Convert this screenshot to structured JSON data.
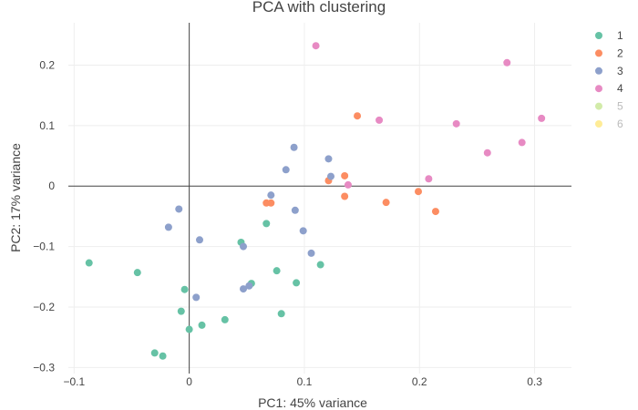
{
  "chart_data": {
    "type": "scatter",
    "title": "PCA with clustering",
    "xlabel": "PC1: 45% variance",
    "ylabel": "PC2: 17% variance",
    "xlim": [
      -0.105,
      0.332
    ],
    "ylim": [
      -0.31,
      0.27
    ],
    "xticks": [
      -0.1,
      0,
      0.1,
      0.2,
      0.3
    ],
    "xtick_labels": [
      "−0.1",
      "0",
      "0.1",
      "0.2",
      "0.3"
    ],
    "yticks": [
      -0.3,
      -0.2,
      -0.1,
      0,
      0.1,
      0.2
    ],
    "ytick_labels": [
      "−0.3",
      "−0.2",
      "−0.1",
      "0",
      "0.1",
      "0.2"
    ],
    "grid": true,
    "legend_position": "top-right",
    "series": [
      {
        "name": "1",
        "color": "#66c2a5",
        "points": [
          [
            -0.087,
            -0.127
          ],
          [
            -0.045,
            -0.143
          ],
          [
            -0.004,
            -0.171
          ],
          [
            -0.007,
            -0.207
          ],
          [
            0.0,
            -0.237
          ],
          [
            0.011,
            -0.23
          ],
          [
            0.031,
            -0.221
          ],
          [
            -0.03,
            -0.276
          ],
          [
            -0.023,
            -0.281
          ],
          [
            0.045,
            -0.093
          ],
          [
            0.054,
            -0.161
          ],
          [
            0.067,
            -0.062
          ],
          [
            0.076,
            -0.14
          ],
          [
            0.08,
            -0.211
          ],
          [
            0.093,
            -0.16
          ],
          [
            0.114,
            -0.13
          ]
        ]
      },
      {
        "name": "2",
        "color": "#fc8d62",
        "points": [
          [
            0.067,
            -0.028
          ],
          [
            0.071,
            -0.028
          ],
          [
            0.121,
            0.009
          ],
          [
            0.135,
            0.017
          ],
          [
            0.135,
            -0.017
          ],
          [
            0.146,
            0.116
          ],
          [
            0.171,
            -0.027
          ],
          [
            0.199,
            -0.009
          ],
          [
            0.214,
            -0.042
          ]
        ]
      },
      {
        "name": "3",
        "color": "#8da0cb",
        "points": [
          [
            -0.009,
            -0.038
          ],
          [
            -0.018,
            -0.068
          ],
          [
            0.009,
            -0.089
          ],
          [
            0.006,
            -0.184
          ],
          [
            0.047,
            -0.1
          ],
          [
            0.047,
            -0.17
          ],
          [
            0.052,
            -0.165
          ],
          [
            0.071,
            -0.015
          ],
          [
            0.084,
            0.027
          ],
          [
            0.091,
            0.064
          ],
          [
            0.092,
            -0.04
          ],
          [
            0.099,
            -0.074
          ],
          [
            0.106,
            -0.111
          ],
          [
            0.121,
            0.045
          ],
          [
            0.123,
            0.016
          ]
        ]
      },
      {
        "name": "4",
        "color": "#e78ac3",
        "points": [
          [
            0.11,
            0.232
          ],
          [
            0.138,
            0.002
          ],
          [
            0.165,
            0.109
          ],
          [
            0.208,
            0.012
          ],
          [
            0.232,
            0.103
          ],
          [
            0.259,
            0.055
          ],
          [
            0.276,
            0.204
          ],
          [
            0.289,
            0.072
          ],
          [
            0.306,
            0.112
          ]
        ]
      },
      {
        "name": "5",
        "color": "#a6d854",
        "points": []
      },
      {
        "name": "6",
        "color": "#ffd92f",
        "points": []
      }
    ]
  }
}
